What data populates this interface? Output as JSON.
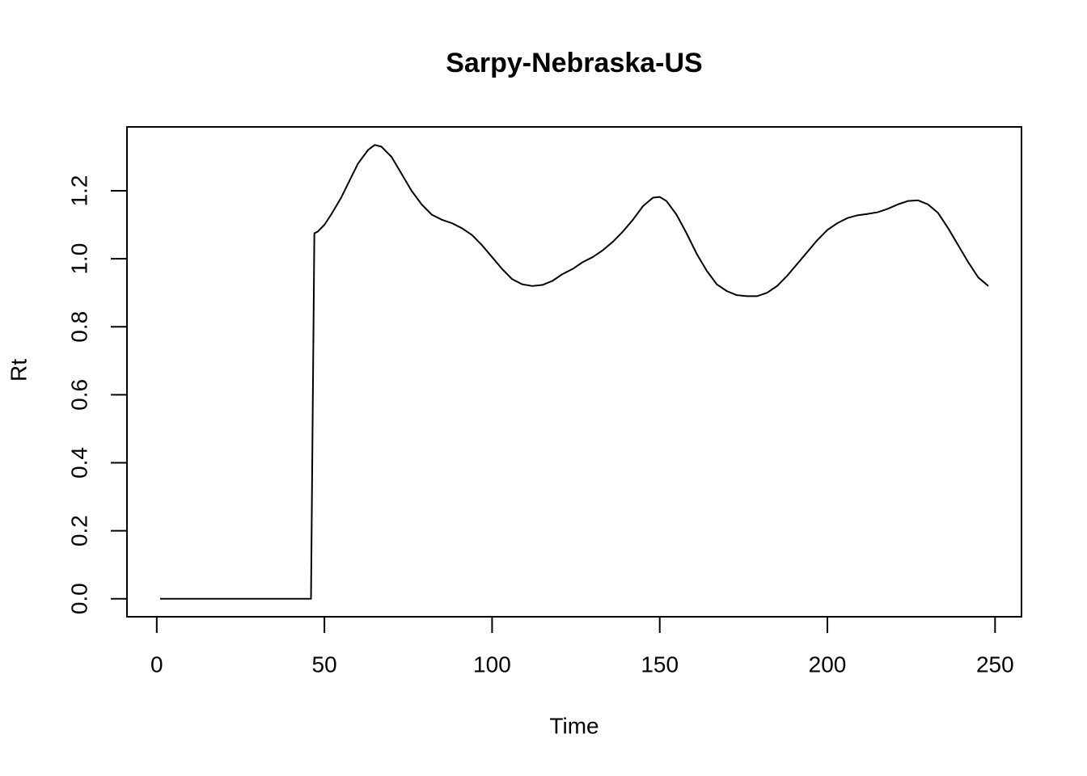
{
  "chart_data": {
    "type": "line",
    "title": "Sarpy-Nebraska-US",
    "x_label": "Time",
    "y_label": "Rt",
    "x": [
      1,
      46,
      47,
      48,
      50,
      52,
      55,
      58,
      60,
      63,
      65,
      67,
      70,
      73,
      76,
      79,
      82,
      85,
      88,
      91,
      94,
      97,
      100,
      103,
      106,
      109,
      112,
      115,
      118,
      121,
      124,
      127,
      130,
      133,
      136,
      139,
      142,
      145,
      148,
      150,
      152,
      155,
      158,
      161,
      164,
      167,
      170,
      173,
      176,
      179,
      182,
      185,
      188,
      191,
      194,
      197,
      200,
      203,
      206,
      209,
      212,
      215,
      218,
      221,
      224,
      227,
      230,
      233,
      236,
      239,
      242,
      245,
      248
    ],
    "series": [
      {
        "name": "Rt",
        "color": "#000000",
        "values": [
          0,
          0,
          1.075,
          1.08,
          1.1,
          1.13,
          1.18,
          1.24,
          1.28,
          1.32,
          1.335,
          1.33,
          1.3,
          1.25,
          1.2,
          1.16,
          1.13,
          1.115,
          1.105,
          1.09,
          1.07,
          1.04,
          1.005,
          0.97,
          0.94,
          0.925,
          0.92,
          0.923,
          0.935,
          0.955,
          0.97,
          0.99,
          1.005,
          1.025,
          1.05,
          1.08,
          1.115,
          1.155,
          1.18,
          1.182,
          1.17,
          1.13,
          1.075,
          1.015,
          0.965,
          0.925,
          0.905,
          0.893,
          0.89,
          0.89,
          0.9,
          0.92,
          0.95,
          0.985,
          1.02,
          1.055,
          1.085,
          1.105,
          1.12,
          1.128,
          1.132,
          1.137,
          1.147,
          1.16,
          1.17,
          1.172,
          1.16,
          1.135,
          1.09,
          1.04,
          0.99,
          0.945,
          0.92
        ]
      }
    ],
    "xlim": [
      -8.88,
      257.88
    ],
    "ylim": [
      -0.053,
      1.388
    ],
    "xticks": [
      0,
      50,
      100,
      150,
      200,
      250
    ],
    "yticks": [
      {
        "value": 0,
        "label": "0.0"
      },
      0.2,
      0.4,
      0.6,
      0.8,
      {
        "value": 1,
        "label": "1.0"
      },
      1.2
    ]
  }
}
